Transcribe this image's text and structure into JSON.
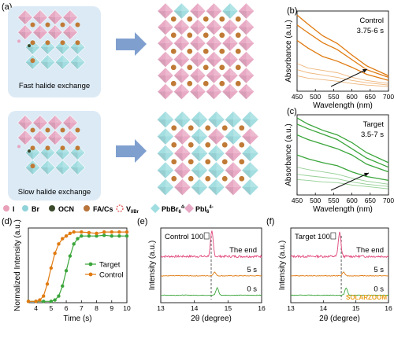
{
  "panel_labels": {
    "a": "(a)",
    "b": "(b)",
    "c": "(c)",
    "d": "(d)",
    "e": "(e)",
    "f": "(f)"
  },
  "schematic": {
    "fast_label": "Fast halide exchange",
    "slow_label": "Slow halide exchange",
    "legend": [
      {
        "text": "I",
        "color": "#e8a0b8"
      },
      {
        "text": "Br",
        "color": "#8fd3d9"
      },
      {
        "text": "OCN",
        "color": "#3a4a2a"
      },
      {
        "text": "FA/Cs",
        "color": "#b8743a"
      },
      {
        "text": "V",
        "sub": "I/Br",
        "color": "#e34040"
      },
      {
        "text": "PbBr",
        "sub": "6",
        "sup": "4-",
        "color": "#9fdde0"
      },
      {
        "text": "PbI",
        "sub": "6",
        "sup": "4-",
        "color": "#e6a8c4"
      }
    ],
    "colors": {
      "pink": "#e8a6c2",
      "cyan": "#9fdde0",
      "orange": "#c07a36",
      "bg": "#dceaf5",
      "arrow": "#7f9fcf"
    }
  },
  "chart_data": [
    {
      "id": "b",
      "type": "line",
      "title": "Control",
      "subtitle": "3.75-6 s",
      "xlabel": "Wavelength (nm)",
      "ylabel": "Absorbance (a.u.)",
      "xlim": [
        450,
        700
      ],
      "xticks": [
        450,
        500,
        550,
        600,
        650,
        700
      ],
      "color": "#e07a10",
      "series": [
        {
          "values": [
            [
              450,
              0.99
            ],
            [
              480,
              0.87
            ],
            [
              520,
              0.72
            ],
            [
              560,
              0.62
            ],
            [
              600,
              0.47
            ],
            [
              640,
              0.33
            ],
            [
              700,
              0.2
            ]
          ]
        },
        {
          "values": [
            [
              450,
              0.86
            ],
            [
              480,
              0.76
            ],
            [
              520,
              0.63
            ],
            [
              560,
              0.54
            ],
            [
              600,
              0.41
            ],
            [
              640,
              0.28
            ],
            [
              700,
              0.18
            ]
          ]
        },
        {
          "values": [
            [
              450,
              0.66
            ],
            [
              480,
              0.56
            ],
            [
              520,
              0.45
            ],
            [
              560,
              0.39
            ],
            [
              600,
              0.31
            ],
            [
              640,
              0.22
            ],
            [
              700,
              0.14
            ]
          ]
        },
        {
          "values": [
            [
              450,
              0.36
            ],
            [
              480,
              0.3
            ],
            [
              520,
              0.27
            ],
            [
              560,
              0.24
            ],
            [
              600,
              0.18
            ],
            [
              640,
              0.14
            ],
            [
              700,
              0.1
            ]
          ]
        },
        {
          "values": [
            [
              450,
              0.28
            ],
            [
              480,
              0.24
            ],
            [
              520,
              0.21
            ],
            [
              560,
              0.18
            ],
            [
              600,
              0.14
            ],
            [
              640,
              0.11
            ],
            [
              700,
              0.08
            ]
          ]
        },
        {
          "values": [
            [
              450,
              0.2
            ],
            [
              480,
              0.17
            ],
            [
              520,
              0.15
            ],
            [
              560,
              0.13
            ],
            [
              600,
              0.1
            ],
            [
              640,
              0.08
            ],
            [
              700,
              0.06
            ]
          ]
        }
      ]
    },
    {
      "id": "c",
      "type": "line",
      "title": "Target",
      "subtitle": "3.5-7 s",
      "xlabel": "Wavelength (nm)",
      "ylabel": "Absorbance (a.u.)",
      "xlim": [
        450,
        700
      ],
      "xticks": [
        450,
        500,
        550,
        600,
        650,
        700
      ],
      "color": "#3aa53a",
      "series": [
        {
          "values": [
            [
              450,
              1.0
            ],
            [
              480,
              0.92
            ],
            [
              520,
              0.84
            ],
            [
              560,
              0.78
            ],
            [
              600,
              0.68
            ],
            [
              640,
              0.55
            ],
            [
              700,
              0.42
            ]
          ]
        },
        {
          "values": [
            [
              450,
              0.92
            ],
            [
              480,
              0.86
            ],
            [
              520,
              0.79
            ],
            [
              560,
              0.72
            ],
            [
              600,
              0.6
            ],
            [
              640,
              0.48
            ],
            [
              700,
              0.36
            ]
          ]
        },
        {
          "values": [
            [
              450,
              0.78
            ],
            [
              480,
              0.72
            ],
            [
              520,
              0.66
            ],
            [
              560,
              0.6
            ],
            [
              600,
              0.52
            ],
            [
              640,
              0.4
            ],
            [
              700,
              0.3
            ]
          ]
        },
        {
          "values": [
            [
              450,
              0.52
            ],
            [
              480,
              0.47
            ],
            [
              520,
              0.42
            ],
            [
              560,
              0.38
            ],
            [
              600,
              0.3
            ],
            [
              640,
              0.24
            ],
            [
              700,
              0.19
            ]
          ]
        },
        {
          "values": [
            [
              450,
              0.36
            ],
            [
              480,
              0.33
            ],
            [
              520,
              0.3
            ],
            [
              560,
              0.27
            ],
            [
              600,
              0.22
            ],
            [
              640,
              0.18
            ],
            [
              700,
              0.14
            ]
          ]
        },
        {
          "values": [
            [
              450,
              0.27
            ],
            [
              480,
              0.25
            ],
            [
              520,
              0.23
            ],
            [
              560,
              0.21
            ],
            [
              600,
              0.17
            ],
            [
              640,
              0.14
            ],
            [
              700,
              0.11
            ]
          ]
        },
        {
          "values": [
            [
              450,
              0.2
            ],
            [
              480,
              0.19
            ],
            [
              520,
              0.17
            ],
            [
              560,
              0.16
            ],
            [
              600,
              0.13
            ],
            [
              640,
              0.11
            ],
            [
              700,
              0.08
            ]
          ]
        }
      ]
    },
    {
      "id": "d",
      "type": "line",
      "xlabel": "Time (s)",
      "ylabel": "Normalized Intensity (a.u.)",
      "xlim": [
        3.5,
        10
      ],
      "xticks": [
        4,
        5,
        6,
        7,
        8,
        9,
        10
      ],
      "ylim": [
        0,
        1.12
      ],
      "legend": "center-right",
      "series": [
        {
          "name": "Target",
          "color": "#3aa53a",
          "marker": "circle",
          "x": [
            3.5,
            4,
            4.5,
            5,
            5.25,
            5.5,
            5.75,
            6,
            6.25,
            6.5,
            6.75,
            7,
            7.5,
            8,
            8.5,
            9,
            9.5,
            10
          ],
          "values": [
            0.02,
            0.02,
            0.02,
            0.02,
            0.04,
            0.1,
            0.25,
            0.48,
            0.7,
            0.88,
            0.96,
            1.0,
            1.0,
            1.0,
            1.01,
            1.0,
            1.0,
            1.0
          ]
        },
        {
          "name": "Control",
          "color": "#e07a10",
          "marker": "circle",
          "x": [
            3.5,
            4,
            4.25,
            4.5,
            4.75,
            5,
            5.25,
            5.5,
            5.75,
            6,
            6.25,
            6.5,
            7,
            7.5,
            8,
            8.5,
            9,
            9.5,
            10
          ],
          "values": [
            0.02,
            0.02,
            0.04,
            0.1,
            0.28,
            0.52,
            0.74,
            0.88,
            0.96,
            1.0,
            1.04,
            1.06,
            1.06,
            1.05,
            1.04,
            1.06,
            1.06,
            1.06,
            1.06
          ]
        }
      ]
    },
    {
      "id": "e",
      "type": "line",
      "title": "Control 100",
      "xlabel": "2θ (degree)",
      "ylabel": "Intensity (a.u.)",
      "xlim": [
        13,
        16
      ],
      "xticks": [
        13,
        14,
        15,
        16
      ],
      "dash_x": 14.5,
      "series": [
        {
          "name": "The end",
          "color": "#e0467a",
          "offset": 0.62,
          "peak": 14.52,
          "height": 0.33,
          "noise": 0.015
        },
        {
          "name": "5 s",
          "color": "#e07a10",
          "offset": 0.36,
          "peak": 14.6,
          "height": 0.05,
          "noise": 0.004
        },
        {
          "name": "0 s",
          "color": "#3aa53a",
          "offset": 0.1,
          "peak": 14.68,
          "height": 0.1,
          "noise": 0.004
        }
      ]
    },
    {
      "id": "f",
      "type": "line",
      "title": "Target 100",
      "xlabel": "2θ (degree)",
      "ylabel": "Intensity (a.u.)",
      "xlim": [
        13,
        16
      ],
      "xticks": [
        13,
        14,
        15,
        16
      ],
      "dash_x": 14.55,
      "series": [
        {
          "name": "The end",
          "color": "#e0467a",
          "offset": 0.62,
          "peak": 14.5,
          "height": 0.33,
          "noise": 0.015
        },
        {
          "name": "5 s",
          "color": "#e07a10",
          "offset": 0.36,
          "peak": 14.62,
          "height": 0.05,
          "noise": 0.004
        },
        {
          "name": "0 s",
          "color": "#3aa53a",
          "offset": 0.1,
          "peak": 14.7,
          "height": 0.1,
          "noise": 0.004
        }
      ]
    }
  ],
  "watermark": "SOLARZOOM"
}
